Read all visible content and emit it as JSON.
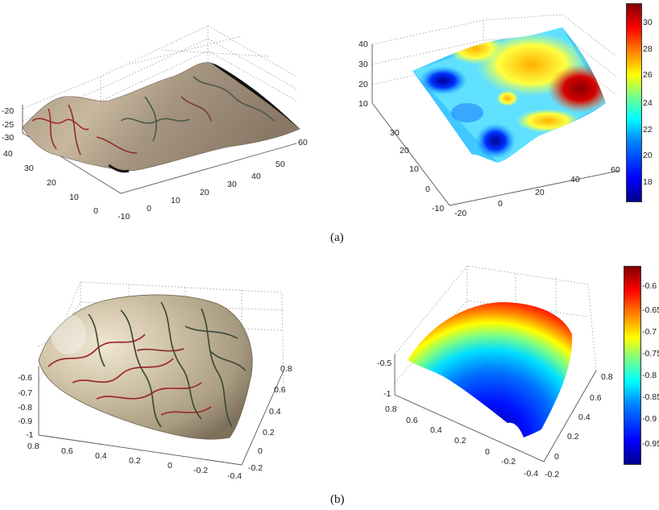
{
  "captions": {
    "a": "(a)",
    "b": "(b)"
  },
  "palette": {
    "jet": [
      "#00008f",
      "#0000ff",
      "#0080ff",
      "#00ffff",
      "#80ff80",
      "#ffff00",
      "#ff8000",
      "#ff0000",
      "#800000"
    ],
    "tissue": [
      "#8a7a66",
      "#b4a48e",
      "#d6c8b0",
      "#6e5c4a"
    ],
    "vessel_red": "#9c2a2a",
    "vessel_dark": "#3e4a3a"
  },
  "chart_data": [
    {
      "id": "a-left",
      "type": "surface",
      "rendering": "texture-mapped tissue",
      "x_ticks": [
        "-10",
        "0",
        "10",
        "20",
        "30",
        "40",
        "50",
        "60"
      ],
      "y_ticks": [
        "0",
        "10",
        "20",
        "30",
        "40"
      ],
      "z_ticks": [
        "-30",
        "-25",
        "-20"
      ],
      "xlim": [
        -10,
        60
      ],
      "ylim": [
        0,
        40
      ],
      "zlim": [
        -30,
        -20
      ],
      "grid": true
    },
    {
      "id": "a-right",
      "type": "surface",
      "rendering": "colormap jet",
      "x_ticks": [
        "-20",
        "0",
        "20",
        "40",
        "60"
      ],
      "y_ticks": [
        "-10",
        "0",
        "10",
        "20",
        "30"
      ],
      "z_ticks": [
        "10",
        "20",
        "30",
        "40"
      ],
      "xlim": [
        -20,
        60
      ],
      "ylim": [
        -10,
        40
      ],
      "zlim": [
        10,
        40
      ],
      "colorbar": {
        "ticks": [
          "18",
          "20",
          "22",
          "24",
          "26",
          "28",
          "30"
        ],
        "range": [
          16.5,
          31
        ]
      },
      "grid": true
    },
    {
      "id": "b-left",
      "type": "surface",
      "rendering": "texture-mapped tissue",
      "x_ticks": [
        "0.8",
        "0.6",
        "0.4",
        "0.2",
        "0",
        "-0.2",
        "-0.4"
      ],
      "y_ticks": [
        "-0.2",
        "0",
        "0.2",
        "0.4",
        "0.6",
        "0.8"
      ],
      "z_ticks": [
        "-1",
        "-0.9",
        "-0.8",
        "-0.7",
        "-0.6"
      ],
      "xlim": [
        -0.4,
        0.8
      ],
      "ylim": [
        -0.2,
        0.8
      ],
      "zlim": [
        -1,
        -0.6
      ],
      "grid": true
    },
    {
      "id": "b-right",
      "type": "surface",
      "rendering": "colormap jet",
      "x_ticks": [
        "0.8",
        "0.6",
        "0.4",
        "0.2",
        "0",
        "-0.2",
        "-0.4"
      ],
      "y_ticks": [
        "-0.2",
        "0",
        "0.2",
        "0.4",
        "0.6",
        "0.8"
      ],
      "z_ticks": [
        "-1",
        "-0.5"
      ],
      "xlim": [
        -0.4,
        0.8
      ],
      "ylim": [
        -0.2,
        0.8
      ],
      "zlim": [
        -1,
        -0.5
      ],
      "colorbar": {
        "ticks": [
          "-0.95",
          "-0.9",
          "-0.85",
          "-0.8",
          "-0.75",
          "-0.7",
          "-0.65",
          "-0.6"
        ],
        "range": [
          -1,
          -0.58
        ]
      },
      "grid": true
    }
  ]
}
